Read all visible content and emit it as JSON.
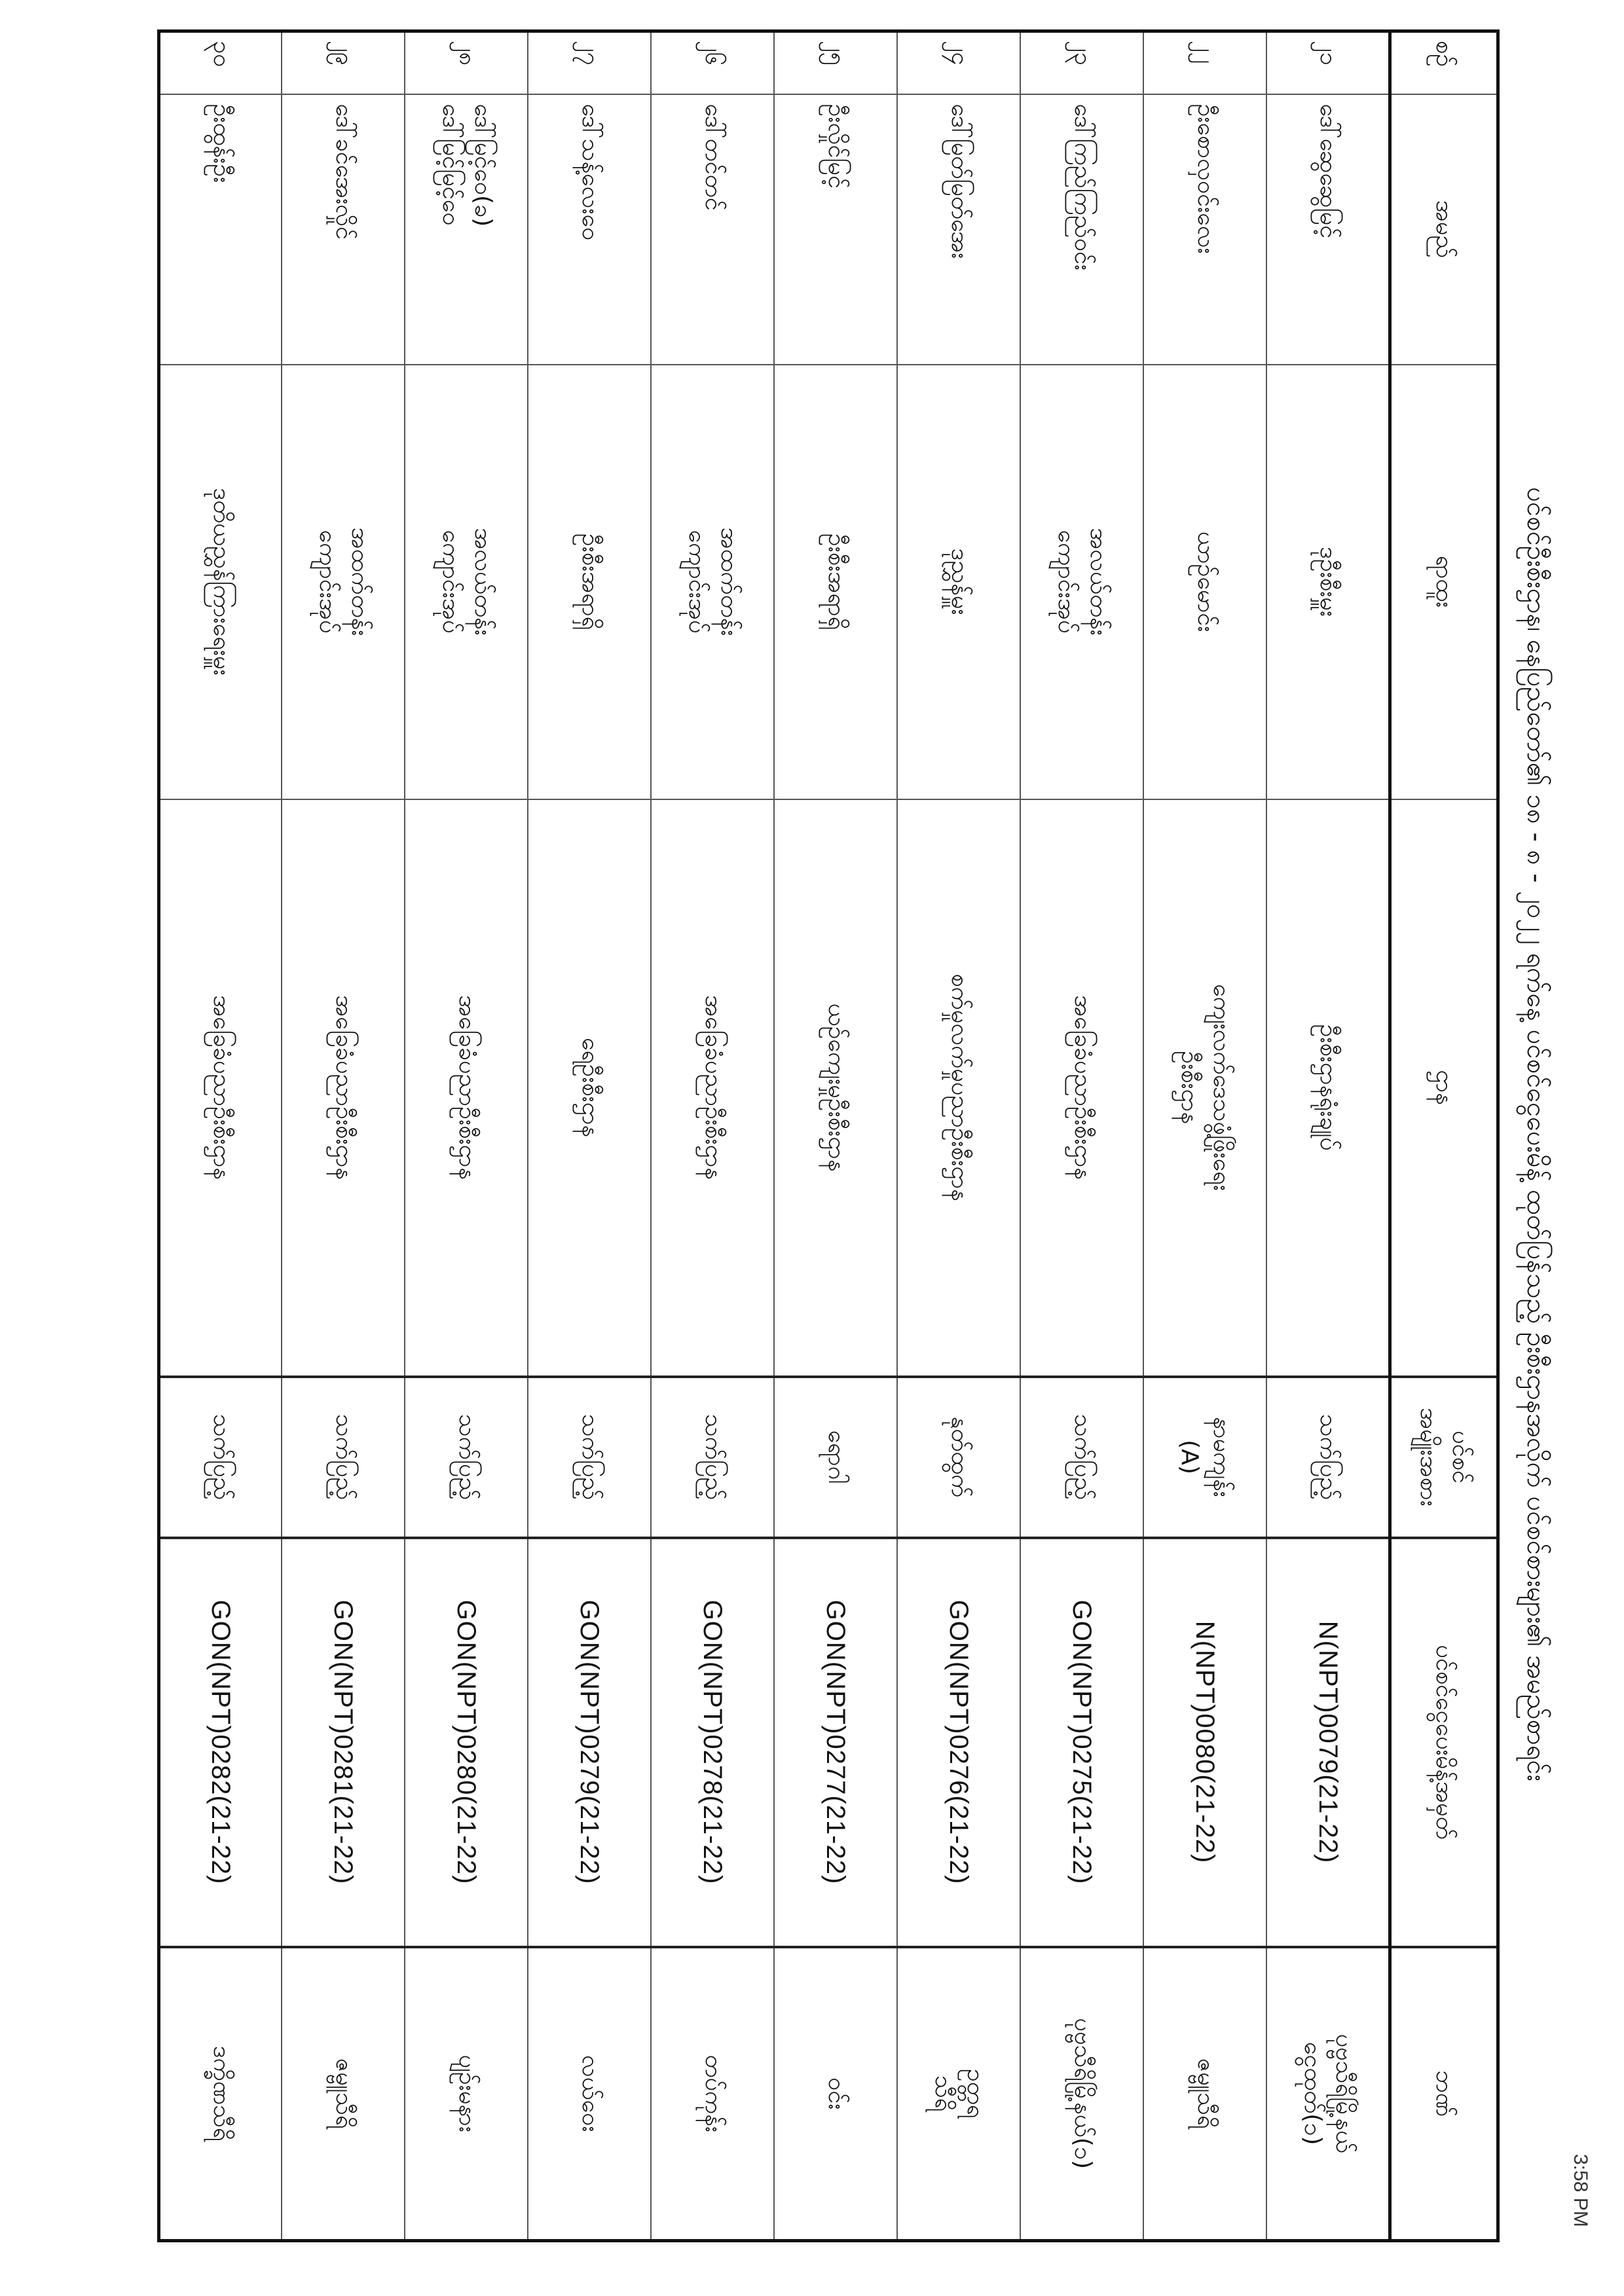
{
  "document": {
    "title": "ပင်စင်ဦးစီးဌာန၊ နေပြည်တော်၏ ၁၈ - ၈ - ၂၀၂၂ ရက်နေ့ ပင်စင်ငွေပေးမိန့် ထုတ်ပြန်သည့် ဦးစီးဌာနအလိုက် ပင်စင်စားများ၏ အမည်စာရင်း",
    "timestamp": "3:58 PM"
  },
  "table": {
    "headers": {
      "no": "စဉ်",
      "name": "အမည်",
      "rank": "ရာထူး",
      "department": "ဌာန",
      "pension_type": "ပင်စင်\nအမျိုးအစား",
      "order_no": "ပင်စင်ငွေပေးမိန့်အမှတ်",
      "bank": "ဘဏ်"
    },
    "rows": [
      {
        "no": "၂၁",
        "name": "ဒေါ်ဆွေဆွေမြင့်",
        "rank": "ဒုဦးစီးမှူး",
        "department": "ဦးစီးဌာနရုံးချုပ်",
        "pension_type": "သက်ပြည့်",
        "order_no": "N(NPT)0079(21-22)",
        "bank": "ပုဗ္ဗသီရိမြို့နယ်\nငွေထုတ်(၁)"
      },
      {
        "no": "၂၂",
        "name": "ဦးစောလှဝင်းလေး",
        "rank": "ယာဉ်မောင်း",
        "department": "ကျေးလက်ဒေသဖွံ့ဖြိုးရေး\nဦးစီးဌာန",
        "pension_type": "နာမကျန်း\n(A)",
        "order_no": "N(NPT)0080(21-22)",
        "bank": "ဇမ္ဗူသီရိ"
      },
      {
        "no": "၂၃",
        "name": "ဒေါ်ကြည်ကြည်ဝင်း",
        "rank": "အလယ်တန်း\nကျောင်းအုပ်",
        "department": "အခြေခံပညာဦးစီးဌာန",
        "pension_type": "သက်ပြည့်",
        "order_no": "GON(NPT)0275(21-22)",
        "bank": "ပုဗ္ဗသီရိမြို့နယ်(၁)"
      },
      {
        "no": "၂၄",
        "name": "ဒေါ်မြတ်မြတ်အေး",
        "rank": "ဒုညွှန်မှူး",
        "department": "စက်မှုလက်မှုပညာဦးစီးဌာန",
        "pension_type": "နုတ်ထွက်",
        "order_no": "GON(NPT)0276(21-22)",
        "bank": "ဥတ္တရ\nသီရိ"
      },
      {
        "no": "၂၅",
        "name": "ဦးလှိုင်မြင့်",
        "rank": "ဦးစီးအရာရှိ",
        "department": "ယဉ်ကျေးမှုဦးစီးဌာန",
        "pension_type": "ရောဂါ",
        "order_no": "GON(NPT)0277(21-22)",
        "bank": "ဝင်း"
      },
      {
        "no": "၂၆",
        "name": "ဒေါ်တင်တင်",
        "rank": "အထက်တန်း\nကျောင်းအုပ်",
        "department": "အခြေခံပညာဦးစီးဌာန",
        "pension_type": "သက်ပြည့်",
        "order_no": "GON(NPT)0278(21-22)",
        "bank": "တပ်ကုန်း"
      },
      {
        "no": "၂၇",
        "name": "ဒေါ်သန့်လေးဝေ",
        "rank": "ဦးစီးအရာရှိ",
        "department": "ရေဦးစီးဌာန",
        "pension_type": "သက်ပြည့်",
        "order_no": "GON(NPT)0279(21-22)",
        "bank": "လယ်ဝေး"
      },
      {
        "no": "၂၈",
        "name": "ဒေါ်မြင့်ဝေ(ခ)\nဒေါ်မြင့်မြင့်ဝေ",
        "rank": "အလယ်တန်း\nကျောင်းအုပ်",
        "department": "အခြေခံပညာဦးစီးဌာန",
        "pension_type": "သက်ပြည့်",
        "order_no": "GON(NPT)0280(21-22)",
        "bank": "ပျဉ်းမနား"
      },
      {
        "no": "၂၉",
        "name": "ဒေါ်ခင်အေးလှိုင်",
        "rank": "အထက်တန်း\nကျောင်းအုပ်",
        "department": "အခြေခံပညာဦးစီးဌာန",
        "pension_type": "သက်ပြည့်",
        "order_no": "GON(NPT)0281(21-22)",
        "bank": "ဇမ္ဗူသီရိ"
      },
      {
        "no": "၃၀",
        "name": "ဦးထွန်းဦး",
        "rank": "ဒုတိယညွှန်ကြားရေးမှူး",
        "department": "အခြေခံပညာဦးစီးဌာန",
        "pension_type": "သက်ပြည့်",
        "order_no": "GON(NPT)0282(21-22)",
        "bank": "ဒက္ခိဏသီရိ"
      }
    ]
  }
}
